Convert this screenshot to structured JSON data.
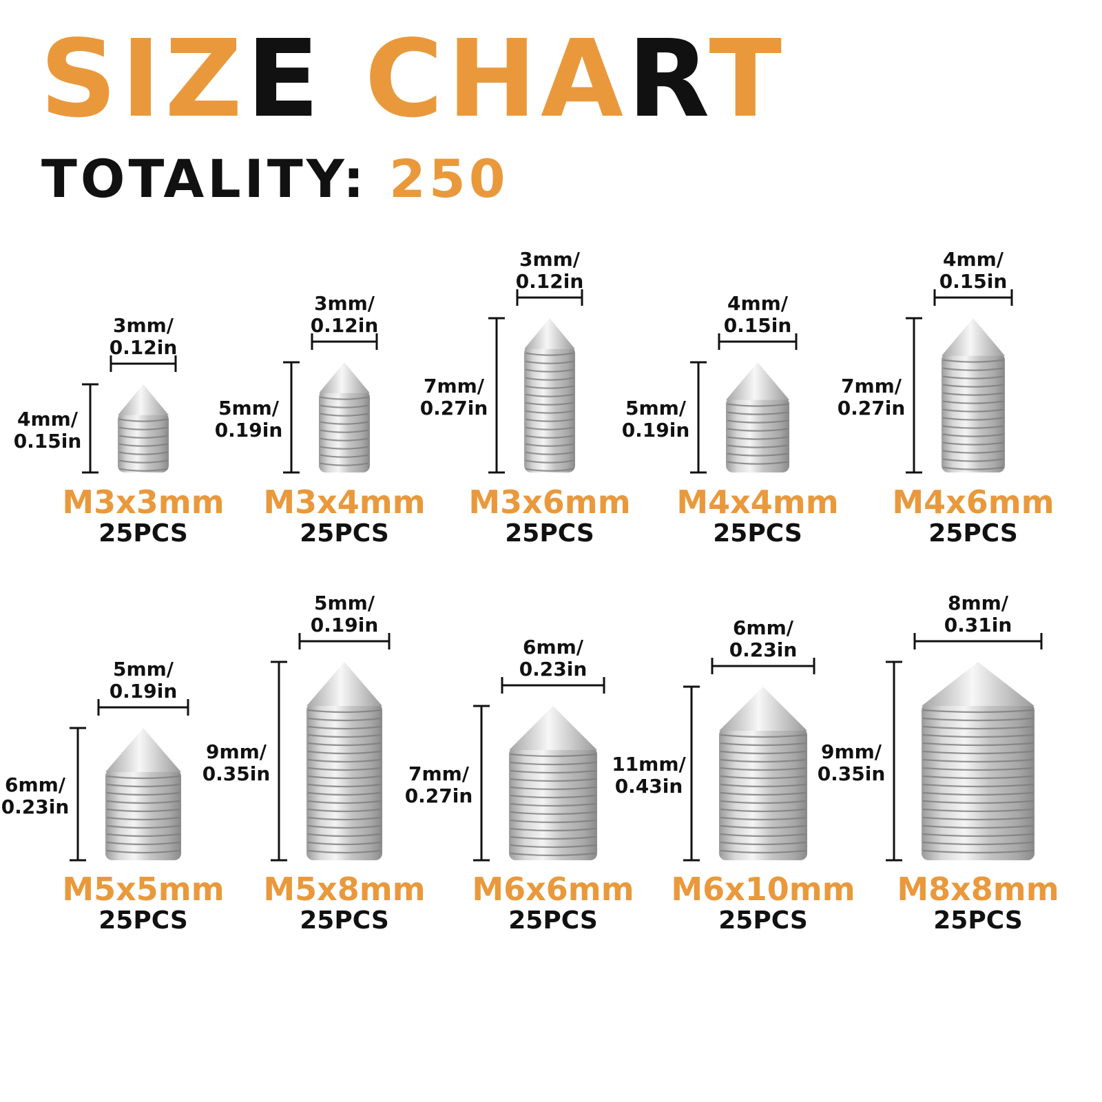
{
  "header": {
    "title_parts": [
      {
        "text": "SIZ",
        "color": "#e9993c"
      },
      {
        "text": "E",
        "color": "#111111"
      },
      {
        "text": " CHA",
        "color": "#e9993c"
      },
      {
        "text": "R",
        "color": "#111111"
      },
      {
        "text": "T",
        "color": "#e9993c"
      }
    ],
    "totality_label": "TOTALITY:",
    "totality_value": "250"
  },
  "colors": {
    "accent": "#e9993c",
    "text": "#111111",
    "metal": "#c9c9c9"
  },
  "screws": [
    {
      "model": "M3x3mm",
      "qty": "25PCS",
      "width_mm": 3,
      "length_mm": 4,
      "width_label": [
        "3mm/",
        "0.12in"
      ],
      "length_label": [
        "4mm/",
        "0.15in"
      ]
    },
    {
      "model": "M3x4mm",
      "qty": "25PCS",
      "width_mm": 3,
      "length_mm": 5,
      "width_label": [
        "3mm/",
        "0.12in"
      ],
      "length_label": [
        "5mm/",
        "0.19in"
      ]
    },
    {
      "model": "M3x6mm",
      "qty": "25PCS",
      "width_mm": 3,
      "length_mm": 7,
      "width_label": [
        "3mm/",
        "0.12in"
      ],
      "length_label": [
        "7mm/",
        "0.27in"
      ]
    },
    {
      "model": "M4x4mm",
      "qty": "25PCS",
      "width_mm": 4,
      "length_mm": 5,
      "width_label": [
        "4mm/",
        "0.15in"
      ],
      "length_label": [
        "5mm/",
        "0.19in"
      ]
    },
    {
      "model": "M4x6mm",
      "qty": "25PCS",
      "width_mm": 4,
      "length_mm": 7,
      "width_label": [
        "4mm/",
        "0.15in"
      ],
      "length_label": [
        "7mm/",
        "0.27in"
      ]
    },
    {
      "model": "M5x5mm",
      "qty": "25PCS",
      "width_mm": 5,
      "length_mm": 6,
      "width_label": [
        "5mm/",
        "0.19in"
      ],
      "length_label": [
        "6mm/",
        "0.23in"
      ]
    },
    {
      "model": "M5x8mm",
      "qty": "25PCS",
      "width_mm": 5,
      "length_mm": 9,
      "width_label": [
        "5mm/",
        "0.19in"
      ],
      "length_label": [
        "9mm/",
        "0.35in"
      ]
    },
    {
      "model": "M6x6mm",
      "qty": "25PCS",
      "width_mm": 6,
      "length_mm": 7,
      "width_label": [
        "6mm/",
        "0.23in"
      ],
      "length_label": [
        "7mm/",
        "0.27in"
      ]
    },
    {
      "model": "M6x10mm",
      "qty": "25PCS",
      "width_mm": 6,
      "length_mm": 11,
      "width_label": [
        "6mm/",
        "0.23in"
      ],
      "length_label": [
        "11mm/",
        "0.43in"
      ]
    },
    {
      "model": "M8x8mm",
      "qty": "25PCS",
      "width_mm": 8,
      "length_mm": 9,
      "width_label": [
        "8mm/",
        "0.31in"
      ],
      "length_label": [
        "9mm/",
        "0.35in"
      ]
    }
  ]
}
